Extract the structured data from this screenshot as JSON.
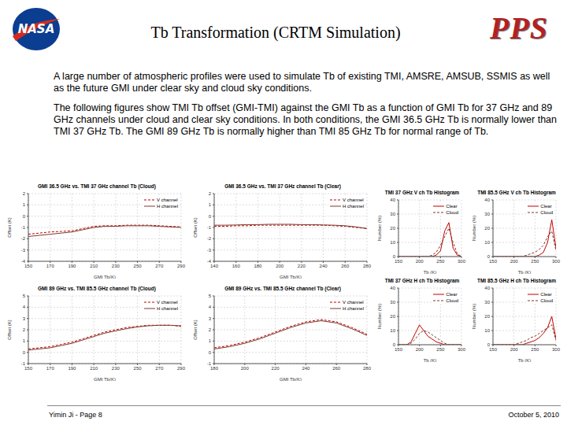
{
  "header": {
    "title": "Tb Transformation (CRTM Simulation)",
    "logo_left": "NASA",
    "logo_right": "PPS"
  },
  "paragraphs": [
    "A large number of atmospheric profiles were used to simulate Tb of existing TMI, AMSRE, AMSUB, SSMIS as well as the future GMI under clear sky and cloud sky conditions.",
    "The following figures show TMI Tb offset (GMI-TMI) against the GMI Tb as a function of GMI Tb for 37 GHz and 89 GHz channels under cloud and clear sky conditions. In both conditions, the GMI 36.5 GHz Tb is normally lower than TMI 37 GHz Tb. The GMI 89 GHz Tb is normally higher than TMI 85 GHz Tb for normal range of Tb."
  ],
  "footer": {
    "left": "Yimin Ji - Page 8",
    "right": "October 5, 2010"
  },
  "chart_data": [
    {
      "type": "line",
      "title": "GMI 36.5 GHz vs. TMI 37 GHz channel Tb (Cloud)",
      "x_label": "GMI Tb(K)",
      "y_label": "Offset (K)",
      "x": [
        150,
        160,
        170,
        180,
        190,
        200,
        210,
        220,
        230,
        240,
        250,
        260,
        270,
        280,
        290
      ],
      "xlim": [
        150,
        290
      ],
      "xticks": [
        150,
        170,
        190,
        210,
        230,
        250,
        270,
        290
      ],
      "ylim": [
        -4,
        2
      ],
      "yticks": [
        -4,
        -3,
        -2,
        -1,
        0,
        1,
        2
      ],
      "grid": true,
      "legend": "upper right",
      "series": [
        {
          "name": "V channel",
          "color": "#c00000",
          "line_style": "dashed",
          "values": [
            -1.6,
            -1.5,
            -1.4,
            -1.35,
            -1.3,
            -1.1,
            -0.9,
            -0.85,
            -0.85,
            -0.8,
            -0.8,
            -0.8,
            -0.85,
            -0.9,
            -0.95
          ]
        },
        {
          "name": "H channel",
          "color": "#7a3b2e",
          "line_style": "solid",
          "values": [
            -1.8,
            -1.7,
            -1.6,
            -1.5,
            -1.4,
            -1.2,
            -1.0,
            -0.9,
            -0.9,
            -0.85,
            -0.85,
            -0.85,
            -0.9,
            -0.95,
            -1.0
          ]
        }
      ]
    },
    {
      "type": "line",
      "title": "GMI 36.5 GHz vs. TMI 37 GHz channel Tb (Clear)",
      "x_label": "GMI Tb(K)",
      "y_label": "Offset (K)",
      "x": [
        140,
        150,
        160,
        170,
        180,
        190,
        200,
        210,
        220,
        230,
        240,
        250,
        260,
        270,
        280
      ],
      "xlim": [
        140,
        280
      ],
      "xticks": [
        140,
        160,
        180,
        200,
        220,
        240,
        260,
        280
      ],
      "ylim": [
        -4,
        2
      ],
      "yticks": [
        -4,
        -3,
        -2,
        -1,
        0,
        1,
        2
      ],
      "grid": true,
      "legend": "upper right",
      "series": [
        {
          "name": "V channel",
          "color": "#c00000",
          "line_style": "dashed",
          "values": [
            -0.9,
            -0.9,
            -0.85,
            -0.85,
            -0.8,
            -0.8,
            -0.8,
            -0.8,
            -0.8,
            -0.8,
            -0.8,
            -0.85,
            -0.9,
            -1.0,
            -1.1
          ]
        },
        {
          "name": "H channel",
          "color": "#7a3b2e",
          "line_style": "solid",
          "values": [
            -0.8,
            -0.8,
            -0.78,
            -0.75,
            -0.75,
            -0.72,
            -0.72,
            -0.72,
            -0.75,
            -0.75,
            -0.78,
            -0.8,
            -0.85,
            -0.95,
            -1.1
          ]
        }
      ]
    },
    {
      "type": "line",
      "title": "GMI 89 GHz vs. TMI 85.5 GHz channel Tb (Cloud)",
      "x_label": "GMI Tb(K)",
      "y_label": "Offset (K)",
      "x": [
        150,
        160,
        170,
        180,
        190,
        200,
        210,
        220,
        230,
        240,
        250,
        260,
        270,
        280,
        290
      ],
      "xlim": [
        150,
        290
      ],
      "xticks": [
        150,
        170,
        190,
        210,
        230,
        250,
        270,
        290
      ],
      "ylim": [
        -1,
        5
      ],
      "yticks": [
        -1,
        0,
        1,
        2,
        3,
        4,
        5
      ],
      "grid": true,
      "legend": "upper right",
      "series": [
        {
          "name": "V channel",
          "color": "#c00000",
          "line_style": "dashed",
          "values": [
            0.3,
            0.4,
            0.5,
            0.7,
            0.9,
            1.2,
            1.5,
            1.8,
            2.0,
            2.2,
            2.3,
            2.4,
            2.4,
            2.4,
            2.3
          ]
        },
        {
          "name": "H channel",
          "color": "#7a3b2e",
          "line_style": "solid",
          "values": [
            0.2,
            0.3,
            0.4,
            0.6,
            0.8,
            1.1,
            1.4,
            1.7,
            1.9,
            2.1,
            2.25,
            2.35,
            2.4,
            2.4,
            2.35
          ]
        }
      ]
    },
    {
      "type": "line",
      "title": "GMI 89 GHz vs. TMI 85.5 GHz channel Tb (Clear)",
      "x_label": "GMI Tb(K)",
      "y_label": "Offset (K)",
      "x": [
        180,
        190,
        200,
        210,
        220,
        230,
        240,
        250,
        260,
        270,
        280
      ],
      "xlim": [
        180,
        280
      ],
      "xticks": [
        180,
        200,
        220,
        240,
        260,
        280
      ],
      "ylim": [
        -1,
        5
      ],
      "yticks": [
        -1,
        0,
        1,
        2,
        3,
        4,
        5
      ],
      "grid": true,
      "legend": "upper right",
      "series": [
        {
          "name": "V channel",
          "color": "#c00000",
          "line_style": "dashed",
          "values": [
            0.4,
            0.6,
            0.9,
            1.3,
            1.8,
            2.3,
            2.7,
            2.9,
            2.7,
            2.2,
            1.6
          ]
        },
        {
          "name": "H channel",
          "color": "#7a3b2e",
          "line_style": "solid",
          "values": [
            0.3,
            0.5,
            0.8,
            1.2,
            1.7,
            2.2,
            2.6,
            2.8,
            2.6,
            2.1,
            1.5
          ]
        }
      ]
    },
    {
      "type": "line",
      "title": "TMI 37 GHz V ch Tb Histogram",
      "x_label": "Tb (K)",
      "y_label": "Number (%)",
      "x": [
        150,
        160,
        170,
        180,
        190,
        200,
        210,
        220,
        230,
        240,
        250,
        260,
        270,
        280,
        290,
        300
      ],
      "xlim": [
        150,
        300
      ],
      "xticks": [
        150,
        200,
        250,
        300
      ],
      "ylim": [
        0,
        40
      ],
      "yticks": [
        0,
        10,
        20,
        30,
        40
      ],
      "grid": true,
      "legend": "upper right",
      "series": [
        {
          "name": "Clear",
          "color": "#c00000",
          "line_style": "solid",
          "values": [
            0,
            0,
            0,
            0,
            0,
            0,
            0,
            0,
            0,
            1,
            4,
            18,
            24,
            6,
            1,
            0
          ]
        },
        {
          "name": "Cloud",
          "color": "#7a3b2e",
          "line_style": "dashed",
          "values": [
            0,
            0,
            0,
            0,
            0,
            0,
            0,
            0,
            1,
            3,
            8,
            14,
            20,
            10,
            2,
            0
          ]
        }
      ]
    },
    {
      "type": "line",
      "title": "TMI 85.5 GHz V ch Tb Histogram",
      "x_label": "Tb (K)",
      "y_label": "Number (%)",
      "x": [
        150,
        160,
        170,
        180,
        190,
        200,
        210,
        220,
        230,
        240,
        250,
        260,
        270,
        280,
        290,
        300
      ],
      "xlim": [
        150,
        300
      ],
      "xticks": [
        150,
        200,
        250,
        300
      ],
      "ylim": [
        0,
        40
      ],
      "yticks": [
        0,
        10,
        20,
        30,
        40
      ],
      "grid": true,
      "legend": "upper right",
      "series": [
        {
          "name": "Clear",
          "color": "#c00000",
          "line_style": "solid",
          "values": [
            0,
            0,
            0,
            0,
            0,
            0,
            0,
            0,
            0,
            0,
            0,
            1,
            3,
            10,
            26,
            6
          ]
        },
        {
          "name": "Cloud",
          "color": "#7a3b2e",
          "line_style": "dashed",
          "values": [
            0,
            0,
            0,
            0,
            0,
            0,
            0,
            0,
            1,
            2,
            3,
            5,
            8,
            14,
            18,
            4
          ]
        }
      ]
    },
    {
      "type": "line",
      "title": "TMI 37 GHz H ch Tb Histogram",
      "x_label": "Tb (K)",
      "y_label": "Number (%)",
      "x": [
        150,
        160,
        170,
        180,
        190,
        200,
        210,
        220,
        230,
        240,
        250,
        260,
        270,
        280,
        290,
        300
      ],
      "xlim": [
        150,
        300
      ],
      "xticks": [
        150,
        200,
        250,
        300
      ],
      "ylim": [
        0,
        40
      ],
      "yticks": [
        0,
        10,
        20,
        30,
        40
      ],
      "grid": true,
      "legend": "upper right",
      "series": [
        {
          "name": "Clear",
          "color": "#c00000",
          "line_style": "solid",
          "values": [
            0,
            0,
            0,
            2,
            8,
            14,
            10,
            6,
            4,
            2,
            1,
            0,
            0,
            0,
            0,
            0
          ]
        },
        {
          "name": "Cloud",
          "color": "#7a3b2e",
          "line_style": "dashed",
          "values": [
            0,
            0,
            0,
            1,
            4,
            8,
            10,
            9,
            7,
            5,
            3,
            1,
            0,
            0,
            0,
            0
          ]
        }
      ]
    },
    {
      "type": "line",
      "title": "TMI 85.5 GHz H ch Tb Histogram",
      "x_label": "Tb (K)",
      "y_label": "Number (%)",
      "x": [
        150,
        160,
        170,
        180,
        190,
        200,
        210,
        220,
        230,
        240,
        250,
        260,
        270,
        280,
        290,
        300
      ],
      "xlim": [
        150,
        300
      ],
      "xticks": [
        150,
        200,
        250,
        300
      ],
      "ylim": [
        0,
        40
      ],
      "yticks": [
        0,
        10,
        20,
        30,
        40
      ],
      "grid": true,
      "legend": "upper right",
      "series": [
        {
          "name": "Clear",
          "color": "#c00000",
          "line_style": "solid",
          "values": [
            0,
            0,
            0,
            0,
            0,
            0,
            0,
            0,
            1,
            2,
            3,
            5,
            8,
            12,
            20,
            4
          ]
        },
        {
          "name": "Cloud",
          "color": "#7a3b2e",
          "line_style": "dashed",
          "values": [
            0,
            0,
            0,
            0,
            0,
            0,
            1,
            2,
            3,
            5,
            6,
            8,
            10,
            12,
            14,
            3
          ]
        }
      ]
    }
  ]
}
